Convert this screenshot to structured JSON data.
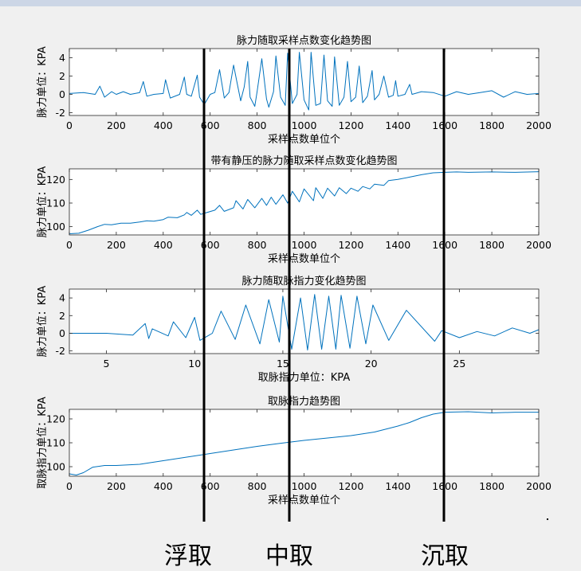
{
  "page": {
    "accent_color": "#0072bd",
    "marker_color": "#000000",
    "marker_labels": [
      "浮取",
      "中取",
      "沉取"
    ]
  },
  "chart_data": [
    {
      "type": "line",
      "title": "脉力随取采样点数变化趋势图",
      "xlabel": "采样点数单位个",
      "ylabel": "脉力单位：KPA",
      "xlim": [
        0,
        2000
      ],
      "ylim": [
        -2.3,
        5
      ],
      "xticks": [
        0,
        200,
        400,
        600,
        800,
        1000,
        1200,
        1400,
        1600,
        1800,
        2000
      ],
      "yticks": [
        -2,
        0,
        2,
        4
      ],
      "series": [
        {
          "x": [
            0,
            60,
            110,
            130,
            150,
            180,
            200,
            230,
            260,
            300,
            315,
            330,
            360,
            400,
            410,
            430,
            470,
            490,
            500,
            520,
            545,
            555,
            575,
            600,
            620,
            640,
            660,
            680,
            700,
            712,
            730,
            745,
            760,
            770,
            790,
            800,
            820,
            840,
            850,
            870,
            880,
            900,
            920,
            930,
            950,
            970,
            980,
            1000,
            1020,
            1030,
            1050,
            1070,
            1085,
            1100,
            1120,
            1130,
            1150,
            1170,
            1185,
            1200,
            1220,
            1235,
            1250,
            1270,
            1290,
            1300,
            1320,
            1340,
            1360,
            1380,
            1390,
            1400,
            1430,
            1450,
            1460,
            1500,
            1550,
            1600,
            1650,
            1700,
            1750,
            1800,
            1850,
            1900,
            1950,
            2000
          ],
          "y": [
            0.1,
            0.2,
            0.0,
            0.9,
            -0.3,
            0.3,
            0.0,
            0.3,
            0.0,
            0.2,
            1.4,
            -0.2,
            0.0,
            0.1,
            1.6,
            -0.4,
            0.0,
            1.9,
            0.0,
            -0.2,
            2.1,
            -0.3,
            -1.1,
            0.0,
            0.2,
            2.7,
            -0.4,
            0.2,
            3.2,
            1.6,
            -0.7,
            0.8,
            3.6,
            -0.3,
            -1.3,
            0.3,
            3.9,
            -0.5,
            -1.4,
            0.3,
            4.2,
            -0.3,
            -1.2,
            4.5,
            -1.0,
            0.0,
            4.6,
            -0.6,
            -1.7,
            4.6,
            -1.2,
            -1.0,
            4.3,
            -0.7,
            -1.3,
            4.1,
            -1.2,
            -0.3,
            3.6,
            -0.8,
            -0.3,
            3.1,
            -0.9,
            -0.2,
            2.6,
            -0.6,
            0.0,
            2.0,
            -0.3,
            -0.1,
            1.5,
            -0.2,
            0.0,
            1.1,
            0.0,
            0.3,
            0.2,
            -0.2,
            0.3,
            0.0,
            0.2,
            0.4,
            -0.3,
            0.3,
            0.0,
            0.1
          ]
        }
      ]
    },
    {
      "type": "line",
      "title": "带有静压的脉力随取采样点数变化趋势图",
      "xlabel": "采样点数单位个",
      "ylabel": "脉力单位：KPA",
      "xlim": [
        0,
        2000
      ],
      "ylim": [
        96.5,
        124.5
      ],
      "xticks": [
        0,
        200,
        400,
        600,
        800,
        1000,
        1200,
        1400,
        1600,
        1800,
        2000
      ],
      "yticks": [
        100,
        110,
        120
      ],
      "series": [
        {
          "x": [
            0,
            40,
            80,
            120,
            150,
            180,
            220,
            260,
            300,
            330,
            360,
            400,
            420,
            460,
            490,
            500,
            520,
            545,
            560,
            580,
            620,
            640,
            660,
            700,
            710,
            740,
            760,
            790,
            820,
            840,
            860,
            880,
            910,
            930,
            950,
            980,
            1000,
            1040,
            1050,
            1080,
            1100,
            1130,
            1150,
            1180,
            1200,
            1230,
            1250,
            1280,
            1300,
            1340,
            1360,
            1400,
            1450,
            1500,
            1550,
            1600,
            1650,
            1700,
            1800,
            1900,
            2000
          ],
          "y": [
            97.0,
            97.2,
            98.5,
            100.0,
            101.0,
            100.8,
            101.5,
            101.5,
            102.0,
            102.5,
            102.3,
            103.0,
            104.0,
            103.8,
            105.0,
            106.0,
            104.8,
            107.0,
            105.2,
            105.8,
            107.0,
            109.0,
            106.5,
            108.0,
            111.0,
            107.5,
            111.5,
            108.0,
            112.0,
            109.0,
            112.5,
            109.5,
            113.5,
            110.0,
            115.0,
            110.5,
            116.0,
            111.0,
            116.5,
            112.0,
            116.3,
            113.0,
            116.5,
            114.0,
            116.3,
            115.0,
            117.0,
            116.0,
            118.0,
            117.5,
            119.5,
            120.0,
            121.0,
            122.0,
            122.8,
            123.0,
            123.2,
            123.0,
            123.2,
            123.0,
            123.3
          ]
        }
      ]
    },
    {
      "type": "line",
      "title": "脉力随取脉指力变化趋势图",
      "xlabel": "取脉指力单位：KPA",
      "ylabel": "脉力单位：KPA",
      "xlim": [
        2.9,
        29.5
      ],
      "ylim": [
        -2.3,
        5
      ],
      "xticks": [
        5,
        10,
        15,
        20,
        25
      ],
      "yticks": [
        -2,
        0,
        2,
        4
      ],
      "series": [
        {
          "x": [
            2.9,
            5,
            6.5,
            7.2,
            7.4,
            7.6,
            8.5,
            8.8,
            9.5,
            10.0,
            10.3,
            11.0,
            11.5,
            12.3,
            12.9,
            13.7,
            14.2,
            14.8,
            15.0,
            15.5,
            16.0,
            16.4,
            16.8,
            17.2,
            17.6,
            18.0,
            18.3,
            18.8,
            19.2,
            19.7,
            20.1,
            21.0,
            22.0,
            23.6,
            24.0,
            25.0,
            26.0,
            27.0,
            28.0,
            29.0,
            29.5
          ],
          "y": [
            0.0,
            0.0,
            -0.2,
            1.1,
            -0.6,
            0.5,
            -0.3,
            1.3,
            -0.5,
            1.8,
            -0.8,
            0.0,
            2.5,
            -0.7,
            3.2,
            -1.2,
            3.8,
            -1.0,
            4.2,
            -1.8,
            4.0,
            -1.9,
            4.4,
            -1.8,
            4.2,
            -1.8,
            4.3,
            -1.7,
            4.2,
            -1.2,
            3.2,
            -0.8,
            2.6,
            -0.9,
            0.3,
            -0.5,
            0.2,
            -0.3,
            0.6,
            0.0,
            0.4
          ]
        }
      ]
    },
    {
      "type": "line",
      "title": "取脉指力趋势图",
      "xlabel": "采样点数单位个",
      "ylabel": "取脉指力单位：KPA",
      "xlim": [
        0,
        2000
      ],
      "ylim": [
        96,
        124
      ],
      "xticks": [
        0,
        200,
        400,
        600,
        800,
        1000,
        1200,
        1400,
        1600,
        1800,
        2000
      ],
      "yticks": [
        100,
        110,
        120
      ],
      "series": [
        {
          "x": [
            0,
            30,
            60,
            100,
            150,
            200,
            300,
            400,
            500,
            600,
            700,
            800,
            900,
            1000,
            1100,
            1200,
            1300,
            1400,
            1450,
            1500,
            1550,
            1600,
            1700,
            1800,
            1900,
            2000
          ],
          "y": [
            97.0,
            96.5,
            97.5,
            99.8,
            100.5,
            100.5,
            101.0,
            102.5,
            104.0,
            105.5,
            107.0,
            108.5,
            109.8,
            111.0,
            112.0,
            113.0,
            114.5,
            117.0,
            118.5,
            120.5,
            122.0,
            122.8,
            123.0,
            122.5,
            122.8,
            122.8
          ]
        }
      ]
    }
  ]
}
